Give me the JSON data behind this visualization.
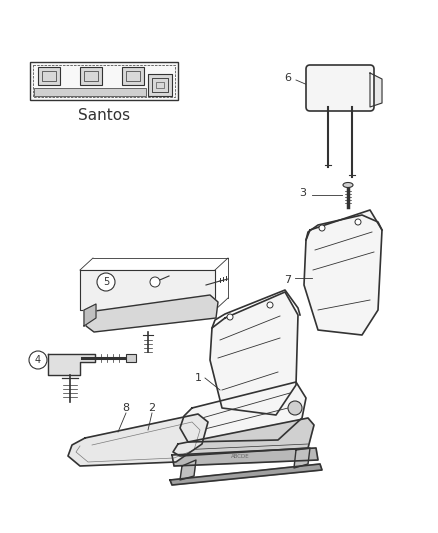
{
  "background_color": "#ffffff",
  "line_color": "#333333",
  "text_color": "#333333",
  "fill_color": "#f5f5f5",
  "fill_dark": "#e0e0e0",
  "figsize": [
    4.38,
    5.33
  ],
  "dpi": 100
}
